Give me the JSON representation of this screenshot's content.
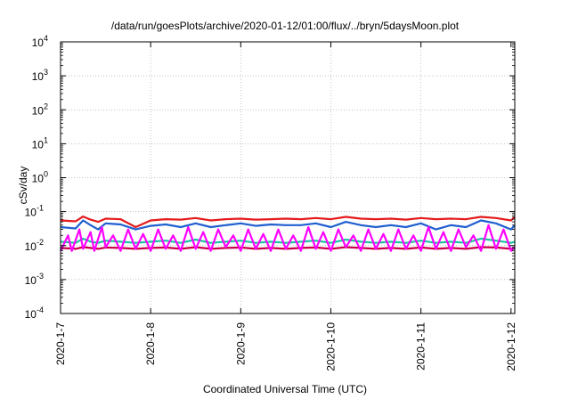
{
  "chart_data": {
    "type": "line",
    "title": "/data/run/goesPlots/archive/2020-01-12/01:00/flux/../bryn/5daysMoon.plot",
    "xlabel": "Coordinated Universal Time (UTC)",
    "ylabel": "cSv/day",
    "y_scale": "log",
    "ylim": [
      0.0001,
      10000
    ],
    "xlim": [
      "2020-01-07 00:00",
      "2020-01-12 01:00"
    ],
    "y_ticks": [
      {
        "value": 0.0001,
        "base": "10",
        "exp": "-4"
      },
      {
        "value": 0.001,
        "base": "10",
        "exp": "-3"
      },
      {
        "value": 0.01,
        "base": "10",
        "exp": "-2"
      },
      {
        "value": 0.1,
        "base": "10",
        "exp": "-1"
      },
      {
        "value": 1,
        "base": "10",
        "exp": "0"
      },
      {
        "value": 10,
        "base": "10",
        "exp": "1"
      },
      {
        "value": 100,
        "base": "10",
        "exp": "2"
      },
      {
        "value": 1000,
        "base": "10",
        "exp": "3"
      },
      {
        "value": 10000,
        "base": "10",
        "exp": "4"
      }
    ],
    "x_ticks": [
      {
        "label": "2020-1-7",
        "day": 0
      },
      {
        "label": "2020-1-8",
        "day": 1
      },
      {
        "label": "2020-1-9",
        "day": 2
      },
      {
        "label": "2020-1-10",
        "day": 3
      },
      {
        "label": "2020-1-11",
        "day": 4
      },
      {
        "label": "2020-1-12",
        "day": 5
      }
    ],
    "grid": true,
    "legend": "none",
    "series": [
      {
        "color": "#e41a1c",
        "x_hours": [
          0,
          4,
          6,
          8,
          10,
          12,
          16,
          20,
          24,
          28,
          32,
          36,
          40,
          44,
          48,
          52,
          56,
          60,
          64,
          68,
          72,
          76,
          80,
          84,
          88,
          92,
          96,
          100,
          104,
          108,
          112,
          116,
          120,
          121
        ],
        "values": [
          0.055,
          0.052,
          0.072,
          0.058,
          0.05,
          0.062,
          0.06,
          0.035,
          0.055,
          0.06,
          0.058,
          0.065,
          0.055,
          0.06,
          0.062,
          0.058,
          0.06,
          0.062,
          0.06,
          0.065,
          0.06,
          0.07,
          0.062,
          0.06,
          0.062,
          0.058,
          0.065,
          0.06,
          0.062,
          0.06,
          0.07,
          0.065,
          0.055,
          0.07
        ]
      },
      {
        "color": "#1f5fd0",
        "x_hours": [
          0,
          4,
          6,
          8,
          10,
          12,
          16,
          20,
          24,
          28,
          32,
          36,
          40,
          44,
          48,
          52,
          56,
          60,
          64,
          68,
          72,
          76,
          80,
          84,
          88,
          92,
          96,
          100,
          104,
          108,
          112,
          116,
          120,
          121
        ],
        "values": [
          0.035,
          0.032,
          0.055,
          0.04,
          0.03,
          0.045,
          0.042,
          0.03,
          0.038,
          0.042,
          0.035,
          0.045,
          0.035,
          0.04,
          0.045,
          0.038,
          0.042,
          0.04,
          0.04,
          0.045,
          0.035,
          0.05,
          0.04,
          0.035,
          0.04,
          0.035,
          0.045,
          0.03,
          0.04,
          0.035,
          0.055,
          0.045,
          0.03,
          0.04
        ]
      },
      {
        "color": "#1fc0a0",
        "x_hours": [
          0,
          4,
          6,
          8,
          10,
          12,
          16,
          20,
          24,
          28,
          32,
          36,
          40,
          44,
          48,
          52,
          56,
          60,
          64,
          68,
          72,
          76,
          80,
          84,
          88,
          92,
          96,
          100,
          104,
          108,
          112,
          116,
          120,
          121
        ],
        "values": [
          0.013,
          0.012,
          0.016,
          0.013,
          0.012,
          0.014,
          0.013,
          0.012,
          0.013,
          0.014,
          0.012,
          0.015,
          0.012,
          0.013,
          0.014,
          0.012,
          0.013,
          0.012,
          0.013,
          0.014,
          0.012,
          0.015,
          0.013,
          0.012,
          0.013,
          0.012,
          0.014,
          0.012,
          0.013,
          0.012,
          0.016,
          0.014,
          0.012,
          0.013
        ]
      },
      {
        "color": "#c8004a",
        "x_hours": [
          0,
          4,
          6,
          8,
          10,
          12,
          16,
          20,
          24,
          28,
          32,
          36,
          40,
          44,
          48,
          52,
          56,
          60,
          64,
          68,
          72,
          76,
          80,
          84,
          88,
          92,
          96,
          100,
          104,
          108,
          112,
          116,
          120,
          121
        ],
        "values": [
          0.0085,
          0.008,
          0.009,
          0.0085,
          0.008,
          0.0088,
          0.0085,
          0.008,
          0.0085,
          0.0088,
          0.008,
          0.009,
          0.008,
          0.0085,
          0.0088,
          0.008,
          0.0085,
          0.008,
          0.0085,
          0.0088,
          0.008,
          0.009,
          0.0085,
          0.008,
          0.0085,
          0.008,
          0.0088,
          0.008,
          0.0085,
          0.008,
          0.009,
          0.0088,
          0.008,
          0.0085
        ]
      },
      {
        "color": "#ff00ff",
        "x_hours": [
          0,
          2,
          3,
          5,
          6,
          8,
          9,
          11,
          12,
          14,
          16,
          18,
          20,
          22,
          24,
          26,
          28,
          30,
          32,
          34,
          36,
          38,
          40,
          42,
          44,
          46,
          48,
          50,
          52,
          54,
          56,
          58,
          60,
          62,
          64,
          66,
          68,
          70,
          72,
          74,
          76,
          78,
          80,
          82,
          84,
          86,
          88,
          90,
          92,
          94,
          96,
          98,
          100,
          102,
          104,
          106,
          108,
          110,
          112,
          114,
          116,
          118,
          120,
          121
        ],
        "values": [
          0.007,
          0.02,
          0.007,
          0.03,
          0.008,
          0.025,
          0.007,
          0.035,
          0.009,
          0.02,
          0.007,
          0.03,
          0.008,
          0.022,
          0.007,
          0.03,
          0.008,
          0.02,
          0.007,
          0.035,
          0.008,
          0.025,
          0.007,
          0.03,
          0.009,
          0.02,
          0.007,
          0.03,
          0.008,
          0.022,
          0.007,
          0.03,
          0.008,
          0.02,
          0.007,
          0.035,
          0.008,
          0.025,
          0.007,
          0.03,
          0.009,
          0.02,
          0.007,
          0.03,
          0.008,
          0.022,
          0.007,
          0.03,
          0.008,
          0.02,
          0.007,
          0.035,
          0.008,
          0.025,
          0.007,
          0.03,
          0.009,
          0.02,
          0.007,
          0.04,
          0.008,
          0.03,
          0.007,
          0.009
        ]
      }
    ]
  }
}
